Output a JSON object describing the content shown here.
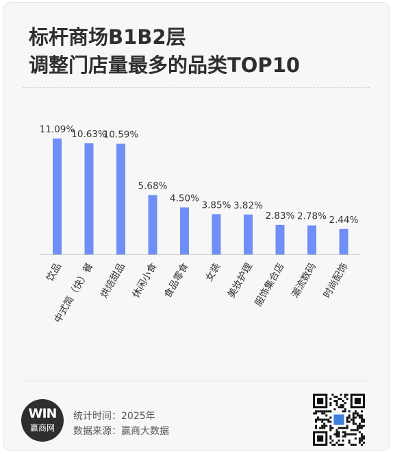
{
  "title": {
    "line1": "标杆商场B1B2层",
    "line2": "调整门店量最多的品类TOP10"
  },
  "chart_data": {
    "type": "bar",
    "title": "标杆商场B1B2层调整门店量最多的品类TOP10",
    "categories": [
      "饮品",
      "中式简（快）餐",
      "烘焙甜品",
      "休闲小食",
      "食品零食",
      "女装",
      "美妆护理",
      "服饰集合店",
      "潮流数码",
      "时尚配饰"
    ],
    "values": [
      11.09,
      10.63,
      10.59,
      5.68,
      4.5,
      3.85,
      3.82,
      2.83,
      2.78,
      2.44
    ],
    "value_labels": [
      "11.09%",
      "10.63%",
      "10.59%",
      "5.68%",
      "4.50%",
      "3.85%",
      "3.82%",
      "2.83%",
      "2.78%",
      "2.44%"
    ],
    "unit": "%",
    "ylim": [
      0,
      11.09
    ],
    "grid": false,
    "bar_color": "#6f8ff7",
    "axis_color": "#c8c8c8"
  },
  "footer": {
    "time_line": "统计时间：2025年",
    "source_line": "数据来源：赢商大数据",
    "logo_text": "赢商网",
    "logo_mark": "WIN"
  }
}
